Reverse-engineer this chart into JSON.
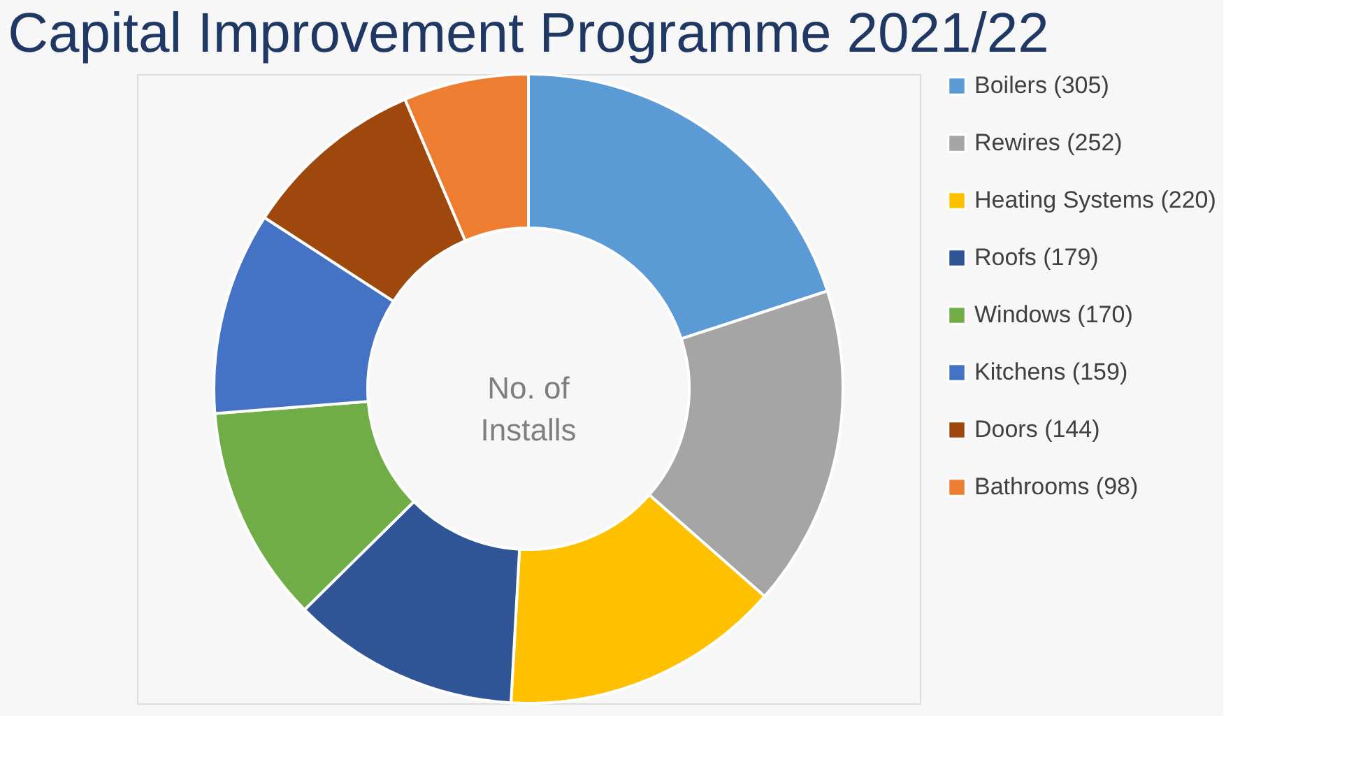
{
  "chart_data": {
    "type": "donut",
    "title": "Capital Improvement Programme 2021/22",
    "categories": [
      "Boilers (305)",
      "Rewires (252)",
      "Heating Systems (220)",
      "Roofs (179)",
      "Windows (170)",
      "Kitchens (159)",
      "Doors (144)",
      "Bathrooms (98)"
    ],
    "values": [
      305,
      252,
      220,
      179,
      170,
      159,
      144,
      98
    ],
    "colors": [
      "#5b9bd5",
      "#a5a5a5",
      "#ffc000",
      "#2f5597",
      "#70ad47",
      "#4472c4",
      "#9e480e",
      "#ed7d31"
    ],
    "annotations": [
      "No. of\nInstalls"
    ],
    "legend": "right"
  }
}
